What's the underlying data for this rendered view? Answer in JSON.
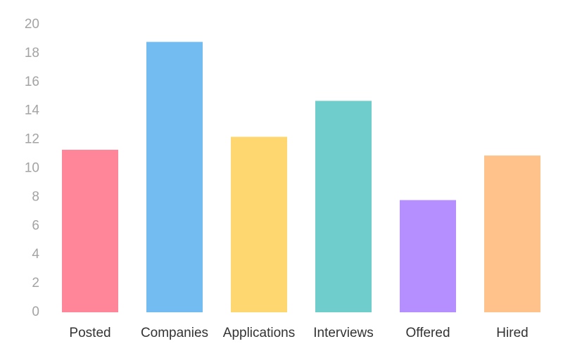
{
  "chart_data": {
    "type": "bar",
    "title": "",
    "xlabel": "",
    "ylabel": "",
    "categories": [
      "Posted",
      "Companies",
      "Applications",
      "Interviews",
      "Offered",
      "Hired"
    ],
    "values": [
      11.3,
      18.8,
      12.2,
      14.7,
      7.8,
      10.9
    ],
    "colors": [
      "#ff8599",
      "#72bcf2",
      "#ffd770",
      "#6fcdcb",
      "#b58fff",
      "#ffc28a"
    ],
    "ylim": [
      0,
      20
    ],
    "yticks": [
      "0",
      "2",
      "4",
      "6",
      "8",
      "10",
      "12",
      "14",
      "16",
      "18",
      "20"
    ],
    "grid": false,
    "legend": "none"
  }
}
